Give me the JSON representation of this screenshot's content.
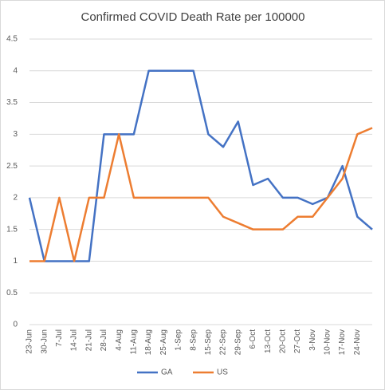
{
  "chart_data": {
    "type": "line",
    "title": "Confirmed COVID Death Rate per 100000",
    "categories": [
      "23-Jun",
      "30-Jun",
      "7-Jul",
      "14-Jul",
      "21-Jul",
      "28-Jul",
      "4-Aug",
      "11-Aug",
      "18-Aug",
      "25-Aug",
      "1-Sep",
      "8-Sep",
      "15-Sep",
      "22-Sep",
      "29-Sep",
      "6-Oct",
      "13-Oct",
      "20-Oct",
      "27-Oct",
      "3-Nov",
      "10-Nov",
      "17-Nov",
      "24-Nov",
      null
    ],
    "series": [
      {
        "name": "GA",
        "color": "#4472c4",
        "values": [
          2,
          1,
          1,
          1,
          1,
          3,
          3,
          3,
          4,
          4,
          4,
          4,
          3,
          2.8,
          3.2,
          2.2,
          2.3,
          2,
          2,
          1.9,
          2,
          2.5,
          1.7,
          1.5
        ]
      },
      {
        "name": "US",
        "color": "#ed7d31",
        "values": [
          1,
          1,
          2,
          1,
          2,
          2,
          3,
          2,
          2,
          2,
          2,
          2,
          2,
          1.7,
          1.6,
          1.5,
          1.5,
          1.5,
          1.7,
          1.7,
          2,
          2.3,
          3,
          3.1
        ]
      }
    ],
    "ylim": [
      0,
      4.5
    ],
    "yticks": [
      0,
      0.5,
      1,
      1.5,
      2,
      2.5,
      3,
      3.5,
      4,
      4.5
    ],
    "grid": true,
    "legend": "bottom"
  }
}
